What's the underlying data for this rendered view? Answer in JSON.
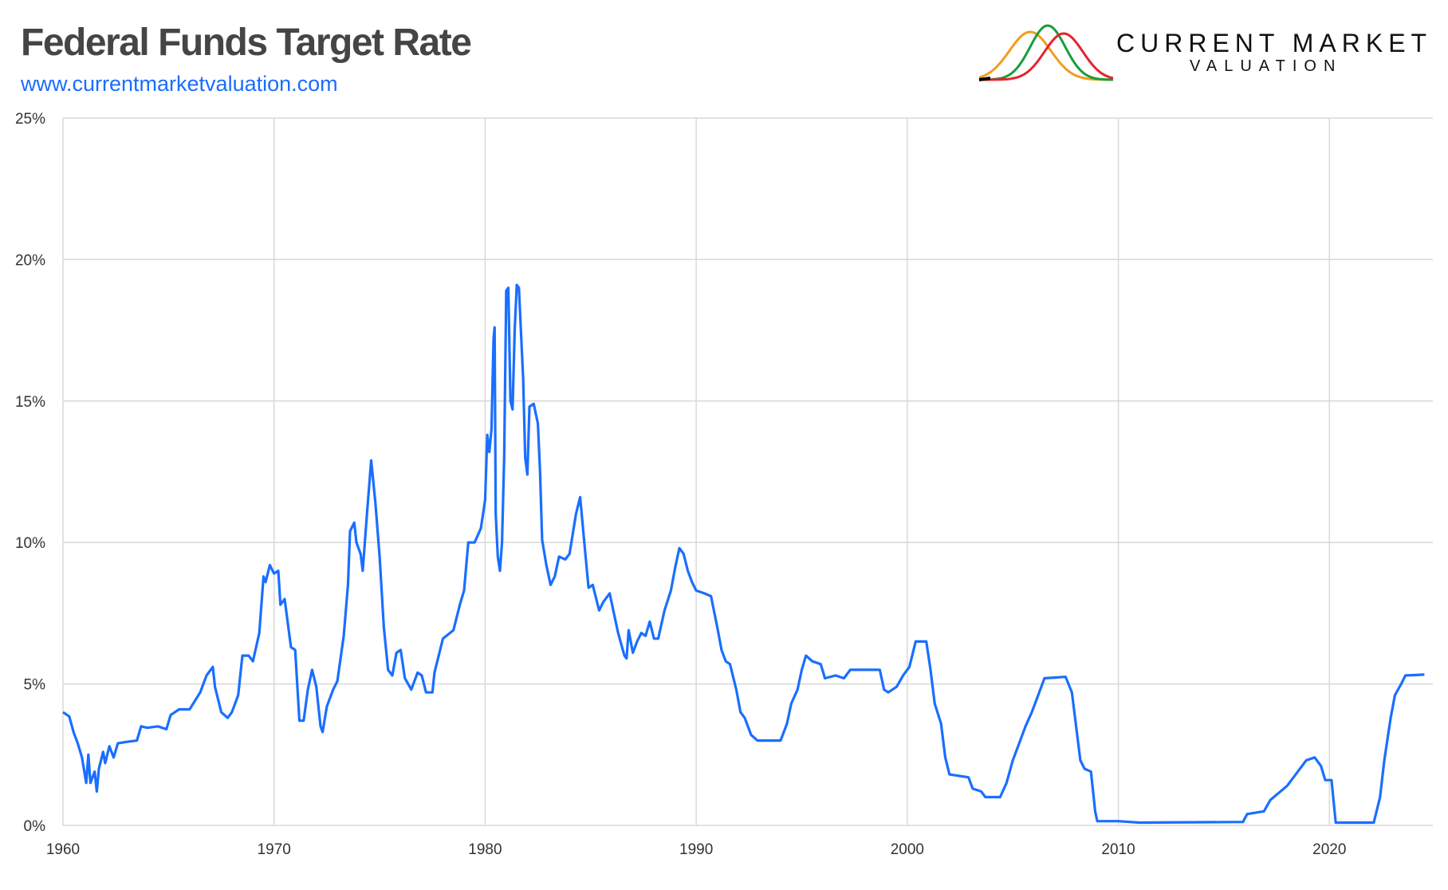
{
  "header": {
    "title": "Federal Funds Target Rate",
    "url": "www.currentmarketvaluation.com"
  },
  "logo": {
    "line1": "CURRENT MARKET",
    "line2": "VALUATION",
    "colors": [
      "#f39c1f",
      "#1a9c3a",
      "#e5242b",
      "#000000"
    ]
  },
  "chart_data": {
    "type": "line",
    "title": "Federal Funds Target Rate",
    "xlabel": "",
    "ylabel": "",
    "xlim": [
      1960,
      2024.9
    ],
    "ylim": [
      0,
      25
    ],
    "x_ticks": [
      1960,
      1970,
      1980,
      1990,
      2000,
      2010,
      2020
    ],
    "x_tick_labels": [
      "1960",
      "1970",
      "1980",
      "1990",
      "2000",
      "2010",
      "2020"
    ],
    "y_ticks": [
      0,
      5,
      10,
      15,
      20,
      25
    ],
    "y_tick_labels": [
      "0%",
      "5%",
      "10%",
      "15%",
      "20%",
      "25%"
    ],
    "grid": true,
    "line_color": "#1a6eff",
    "points": [
      [
        1960.0,
        4.0
      ],
      [
        1960.2,
        3.9
      ],
      [
        1960.3,
        3.85
      ],
      [
        1960.5,
        3.3
      ],
      [
        1960.7,
        2.9
      ],
      [
        1960.9,
        2.4
      ],
      [
        1961.1,
        1.5
      ],
      [
        1961.2,
        2.5
      ],
      [
        1961.3,
        1.5
      ],
      [
        1961.5,
        1.9
      ],
      [
        1961.6,
        1.2
      ],
      [
        1961.7,
        2.0
      ],
      [
        1961.9,
        2.6
      ],
      [
        1962.0,
        2.2
      ],
      [
        1962.2,
        2.8
      ],
      [
        1962.4,
        2.4
      ],
      [
        1962.6,
        2.9
      ],
      [
        1963.0,
        2.95
      ],
      [
        1963.5,
        3.0
      ],
      [
        1963.7,
        3.5
      ],
      [
        1964.0,
        3.45
      ],
      [
        1964.5,
        3.5
      ],
      [
        1964.9,
        3.4
      ],
      [
        1965.1,
        3.9
      ],
      [
        1965.5,
        4.1
      ],
      [
        1966.0,
        4.1
      ],
      [
        1966.5,
        4.7
      ],
      [
        1966.8,
        5.3
      ],
      [
        1967.1,
        5.6
      ],
      [
        1967.2,
        4.9
      ],
      [
        1967.5,
        4.0
      ],
      [
        1967.8,
        3.8
      ],
      [
        1968.0,
        4.0
      ],
      [
        1968.3,
        4.6
      ],
      [
        1968.5,
        6.0
      ],
      [
        1968.8,
        6.0
      ],
      [
        1969.0,
        5.8
      ],
      [
        1969.3,
        6.8
      ],
      [
        1969.5,
        8.8
      ],
      [
        1969.6,
        8.6
      ],
      [
        1969.8,
        9.2
      ],
      [
        1970.0,
        8.9
      ],
      [
        1970.2,
        9.0
      ],
      [
        1970.3,
        7.8
      ],
      [
        1970.5,
        8.0
      ],
      [
        1970.8,
        6.3
      ],
      [
        1971.0,
        6.2
      ],
      [
        1971.2,
        3.7
      ],
      [
        1971.4,
        3.7
      ],
      [
        1971.6,
        4.8
      ],
      [
        1971.8,
        5.5
      ],
      [
        1972.0,
        4.9
      ],
      [
        1972.2,
        3.5
      ],
      [
        1972.3,
        3.3
      ],
      [
        1972.5,
        4.2
      ],
      [
        1972.8,
        4.8
      ],
      [
        1973.0,
        5.1
      ],
      [
        1973.3,
        6.7
      ],
      [
        1973.5,
        8.5
      ],
      [
        1973.6,
        10.4
      ],
      [
        1973.8,
        10.7
      ],
      [
        1973.9,
        10.0
      ],
      [
        1974.1,
        9.6
      ],
      [
        1974.2,
        9.0
      ],
      [
        1974.4,
        11.0
      ],
      [
        1974.6,
        12.9
      ],
      [
        1974.8,
        11.4
      ],
      [
        1975.0,
        9.5
      ],
      [
        1975.2,
        7.0
      ],
      [
        1975.4,
        5.5
      ],
      [
        1975.6,
        5.3
      ],
      [
        1975.8,
        6.1
      ],
      [
        1976.0,
        6.2
      ],
      [
        1976.2,
        5.2
      ],
      [
        1976.5,
        4.8
      ],
      [
        1976.8,
        5.4
      ],
      [
        1977.0,
        5.3
      ],
      [
        1977.2,
        4.7
      ],
      [
        1977.5,
        4.7
      ],
      [
        1977.6,
        5.4
      ],
      [
        1977.8,
        6.0
      ],
      [
        1978.0,
        6.6
      ],
      [
        1978.5,
        6.9
      ],
      [
        1978.8,
        7.8
      ],
      [
        1979.0,
        8.3
      ],
      [
        1979.2,
        10.0
      ],
      [
        1979.5,
        10.0
      ],
      [
        1979.8,
        10.5
      ],
      [
        1980.0,
        11.5
      ],
      [
        1980.1,
        13.8
      ],
      [
        1980.2,
        13.2
      ],
      [
        1980.3,
        14.0
      ],
      [
        1980.4,
        17.2
      ],
      [
        1980.45,
        17.6
      ],
      [
        1980.5,
        11.0
      ],
      [
        1980.6,
        9.5
      ],
      [
        1980.7,
        9.0
      ],
      [
        1980.8,
        10.0
      ],
      [
        1980.9,
        13.0
      ],
      [
        1981.0,
        18.9
      ],
      [
        1981.1,
        19.0
      ],
      [
        1981.2,
        15.0
      ],
      [
        1981.3,
        14.7
      ],
      [
        1981.4,
        17.5
      ],
      [
        1981.5,
        19.1
      ],
      [
        1981.6,
        19.0
      ],
      [
        1981.8,
        15.8
      ],
      [
        1981.9,
        13.0
      ],
      [
        1982.0,
        12.4
      ],
      [
        1982.1,
        14.8
      ],
      [
        1982.3,
        14.9
      ],
      [
        1982.5,
        14.2
      ],
      [
        1982.6,
        12.5
      ],
      [
        1982.7,
        10.1
      ],
      [
        1982.9,
        9.2
      ],
      [
        1983.1,
        8.5
      ],
      [
        1983.3,
        8.8
      ],
      [
        1983.5,
        9.5
      ],
      [
        1983.8,
        9.4
      ],
      [
        1984.0,
        9.6
      ],
      [
        1984.3,
        11.0
      ],
      [
        1984.5,
        11.6
      ],
      [
        1984.7,
        10.0
      ],
      [
        1984.9,
        8.4
      ],
      [
        1985.1,
        8.5
      ],
      [
        1985.3,
        7.9
      ],
      [
        1985.4,
        7.6
      ],
      [
        1985.6,
        7.9
      ],
      [
        1985.9,
        8.2
      ],
      [
        1986.1,
        7.5
      ],
      [
        1986.3,
        6.8
      ],
      [
        1986.6,
        6.0
      ],
      [
        1986.7,
        5.9
      ],
      [
        1986.8,
        6.9
      ],
      [
        1987.0,
        6.1
      ],
      [
        1987.2,
        6.5
      ],
      [
        1987.4,
        6.8
      ],
      [
        1987.6,
        6.7
      ],
      [
        1987.8,
        7.2
      ],
      [
        1988.0,
        6.6
      ],
      [
        1988.2,
        6.6
      ],
      [
        1988.5,
        7.6
      ],
      [
        1988.8,
        8.3
      ],
      [
        1989.0,
        9.1
      ],
      [
        1989.2,
        9.8
      ],
      [
        1989.4,
        9.6
      ],
      [
        1989.6,
        9.0
      ],
      [
        1989.8,
        8.6
      ],
      [
        1990.0,
        8.3
      ],
      [
        1990.4,
        8.2
      ],
      [
        1990.7,
        8.1
      ],
      [
        1991.0,
        7.0
      ],
      [
        1991.2,
        6.2
      ],
      [
        1991.4,
        5.8
      ],
      [
        1991.6,
        5.7
      ],
      [
        1991.9,
        4.8
      ],
      [
        1992.1,
        4.0
      ],
      [
        1992.3,
        3.8
      ],
      [
        1992.6,
        3.2
      ],
      [
        1992.9,
        3.0
      ],
      [
        1993.3,
        3.0
      ],
      [
        1993.7,
        3.0
      ],
      [
        1994.0,
        3.0
      ],
      [
        1994.3,
        3.6
      ],
      [
        1994.5,
        4.3
      ],
      [
        1994.8,
        4.8
      ],
      [
        1995.0,
        5.5
      ],
      [
        1995.2,
        6.0
      ],
      [
        1995.5,
        5.8
      ],
      [
        1995.9,
        5.7
      ],
      [
        1996.1,
        5.2
      ],
      [
        1996.6,
        5.3
      ],
      [
        1997.0,
        5.2
      ],
      [
        1997.3,
        5.5
      ],
      [
        1997.7,
        5.5
      ],
      [
        1998.3,
        5.5
      ],
      [
        1998.7,
        5.5
      ],
      [
        1998.9,
        4.8
      ],
      [
        1999.1,
        4.7
      ],
      [
        1999.5,
        4.9
      ],
      [
        1999.8,
        5.3
      ],
      [
        2000.1,
        5.6
      ],
      [
        2000.4,
        6.5
      ],
      [
        2000.9,
        6.5
      ],
      [
        2001.1,
        5.5
      ],
      [
        2001.3,
        4.3
      ],
      [
        2001.6,
        3.6
      ],
      [
        2001.8,
        2.4
      ],
      [
        2002.0,
        1.8
      ],
      [
        2002.9,
        1.7
      ],
      [
        2003.1,
        1.3
      ],
      [
        2003.5,
        1.2
      ],
      [
        2003.7,
        1.0
      ],
      [
        2004.4,
        1.0
      ],
      [
        2004.7,
        1.5
      ],
      [
        2005.0,
        2.3
      ],
      [
        2005.3,
        2.9
      ],
      [
        2005.6,
        3.5
      ],
      [
        2005.9,
        4.0
      ],
      [
        2006.2,
        4.6
      ],
      [
        2006.5,
        5.2
      ],
      [
        2007.5,
        5.25
      ],
      [
        2007.8,
        4.7
      ],
      [
        2008.0,
        3.5
      ],
      [
        2008.2,
        2.3
      ],
      [
        2008.4,
        2.0
      ],
      [
        2008.7,
        1.9
      ],
      [
        2008.9,
        0.5
      ],
      [
        2009.0,
        0.15
      ],
      [
        2010.0,
        0.15
      ],
      [
        2011.0,
        0.1
      ],
      [
        2015.9,
        0.12
      ],
      [
        2016.1,
        0.4
      ],
      [
        2016.9,
        0.5
      ],
      [
        2017.2,
        0.9
      ],
      [
        2017.6,
        1.15
      ],
      [
        2018.0,
        1.4
      ],
      [
        2018.5,
        1.9
      ],
      [
        2018.9,
        2.3
      ],
      [
        2019.3,
        2.4
      ],
      [
        2019.6,
        2.1
      ],
      [
        2019.8,
        1.6
      ],
      [
        2020.1,
        1.6
      ],
      [
        2020.3,
        0.1
      ],
      [
        2022.1,
        0.1
      ],
      [
        2022.4,
        1.0
      ],
      [
        2022.6,
        2.3
      ],
      [
        2022.9,
        3.8
      ],
      [
        2023.1,
        4.6
      ],
      [
        2023.4,
        5.0
      ],
      [
        2023.6,
        5.3
      ],
      [
        2024.5,
        5.33
      ]
    ]
  }
}
